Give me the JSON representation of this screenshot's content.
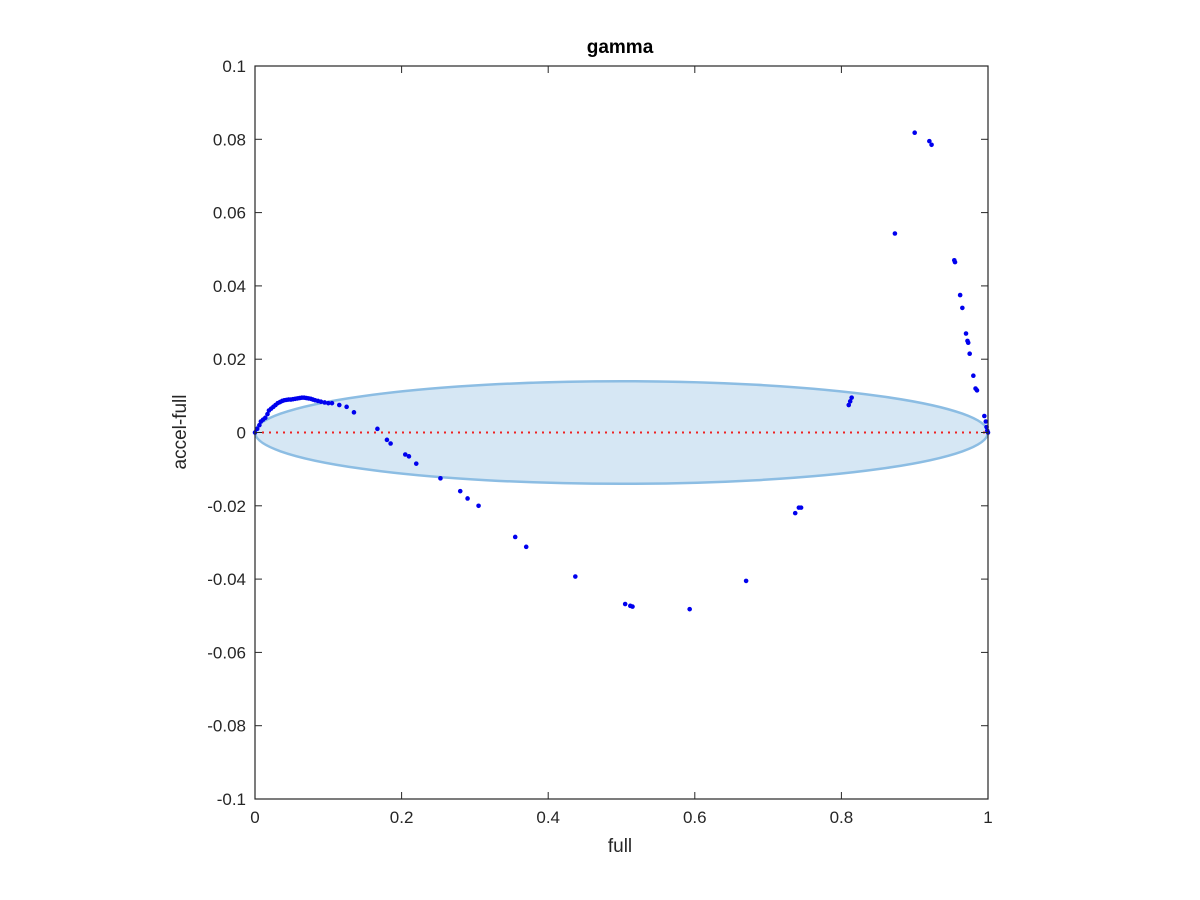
{
  "chart_data": {
    "type": "scatter",
    "title": "gamma",
    "xlabel": "full",
    "ylabel": "accel-full",
    "xlim": [
      0,
      1
    ],
    "ylim": [
      -0.1,
      0.1
    ],
    "x_ticks": [
      0,
      0.2,
      0.4,
      0.6,
      0.8,
      1
    ],
    "x_tick_labels": [
      "0",
      "0.2",
      "0.4",
      "0.6",
      "0.8",
      "1"
    ],
    "y_ticks": [
      -0.1,
      -0.08,
      -0.06,
      -0.04,
      -0.02,
      0,
      0.02,
      0.04,
      0.06,
      0.08,
      0.1
    ],
    "y_tick_labels": [
      "-0.1",
      "-0.08",
      "-0.06",
      "-0.04",
      "-0.02",
      "0",
      "0.02",
      "0.04",
      "0.06",
      "0.08",
      "0.1"
    ],
    "grid": false,
    "box": true,
    "colors": {
      "points": "#0000ee",
      "reference_line": "#ee2222",
      "ellipse_fill": "#d6e7f4",
      "ellipse_edge": "#8cbde3",
      "axes": "#262626"
    },
    "reference_line": {
      "y": 0,
      "x": [
        0,
        1
      ],
      "style": "dotted"
    },
    "ellipse": {
      "center": [
        0.5,
        0
      ],
      "half_width": 0.5,
      "half_height": 0.014
    },
    "series": [
      {
        "points": [
          [
            0.0,
            0.0
          ],
          [
            0.003,
            0.001
          ],
          [
            0.006,
            0.002
          ],
          [
            0.008,
            0.003
          ],
          [
            0.011,
            0.0035
          ],
          [
            0.014,
            0.004
          ],
          [
            0.017,
            0.005
          ],
          [
            0.019,
            0.006
          ],
          [
            0.022,
            0.0065
          ],
          [
            0.025,
            0.007
          ],
          [
            0.028,
            0.0075
          ],
          [
            0.031,
            0.008
          ],
          [
            0.034,
            0.0083
          ],
          [
            0.037,
            0.0086
          ],
          [
            0.04,
            0.0088
          ],
          [
            0.043,
            0.0089
          ],
          [
            0.046,
            0.009
          ],
          [
            0.049,
            0.009
          ],
          [
            0.052,
            0.0091
          ],
          [
            0.055,
            0.0092
          ],
          [
            0.058,
            0.0093
          ],
          [
            0.061,
            0.0094
          ],
          [
            0.064,
            0.0095
          ],
          [
            0.067,
            0.0095
          ],
          [
            0.07,
            0.0094
          ],
          [
            0.073,
            0.0093
          ],
          [
            0.076,
            0.0092
          ],
          [
            0.079,
            0.009
          ],
          [
            0.082,
            0.0088
          ],
          [
            0.086,
            0.0086
          ],
          [
            0.09,
            0.0084
          ],
          [
            0.095,
            0.0082
          ],
          [
            0.1,
            0.008
          ],
          [
            0.105,
            0.008
          ],
          [
            0.115,
            0.0075
          ],
          [
            0.125,
            0.007
          ],
          [
            0.135,
            0.0055
          ],
          [
            0.167,
            0.001
          ],
          [
            0.18,
            -0.002
          ],
          [
            0.185,
            -0.003
          ],
          [
            0.205,
            -0.006
          ],
          [
            0.21,
            -0.0065
          ],
          [
            0.22,
            -0.0085
          ],
          [
            0.253,
            -0.0125
          ],
          [
            0.28,
            -0.016
          ],
          [
            0.29,
            -0.018
          ],
          [
            0.305,
            -0.02
          ],
          [
            0.355,
            -0.0285
          ],
          [
            0.37,
            -0.0312
          ],
          [
            0.437,
            -0.0393
          ],
          [
            0.505,
            -0.0468
          ],
          [
            0.512,
            -0.0473
          ],
          [
            0.515,
            -0.0475
          ],
          [
            0.593,
            -0.0482
          ],
          [
            0.67,
            -0.0405
          ],
          [
            0.737,
            -0.022
          ],
          [
            0.742,
            -0.0205
          ],
          [
            0.745,
            -0.0205
          ],
          [
            0.81,
            0.0075
          ],
          [
            0.812,
            0.0085
          ],
          [
            0.814,
            0.0095
          ],
          [
            0.873,
            0.0543
          ],
          [
            0.9,
            0.0818
          ],
          [
            0.92,
            0.0795
          ],
          [
            0.923,
            0.0785
          ],
          [
            0.954,
            0.047
          ],
          [
            0.955,
            0.0465
          ],
          [
            0.962,
            0.0375
          ],
          [
            0.965,
            0.034
          ],
          [
            0.97,
            0.027
          ],
          [
            0.972,
            0.025
          ],
          [
            0.973,
            0.0245
          ],
          [
            0.975,
            0.0215
          ],
          [
            0.98,
            0.0155
          ],
          [
            0.983,
            0.012
          ],
          [
            0.985,
            0.0115
          ],
          [
            0.995,
            0.0045
          ],
          [
            0.997,
            0.003
          ],
          [
            0.998,
            0.0015
          ],
          [
            0.999,
            0.0005
          ],
          [
            1.0,
            0.0
          ]
        ]
      }
    ]
  }
}
